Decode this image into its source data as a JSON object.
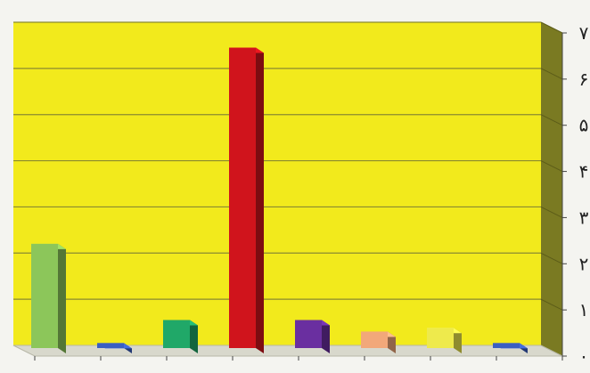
{
  "chart_data": {
    "type": "bar",
    "categories": [
      "",
      "",
      "",
      "",
      "",
      "",
      "",
      ""
    ],
    "values": [
      2.2,
      0.05,
      0.55,
      6.45,
      0.55,
      0.3,
      0.38,
      0.05
    ],
    "bar_colors": [
      "#8cc65a",
      "#3a5fc2",
      "#20a868",
      "#d0141c",
      "#6a2fa0",
      "#f2a87a",
      "#eeea4c",
      "#3a5fc2"
    ],
    "ylim": [
      0,
      7
    ],
    "ytick_labels": [
      "۰",
      "۱",
      "۲",
      "۳",
      "۴",
      "۵",
      "۶",
      "۷"
    ],
    "title": "",
    "xlabel": "",
    "ylabel": "",
    "grid": true,
    "legend": "none",
    "colors": {
      "plot_background": "#f2ea1c",
      "back_wall_shade": "#7a7a22",
      "floor": "#d8d8cc",
      "gridline": "#8a8a30"
    }
  }
}
